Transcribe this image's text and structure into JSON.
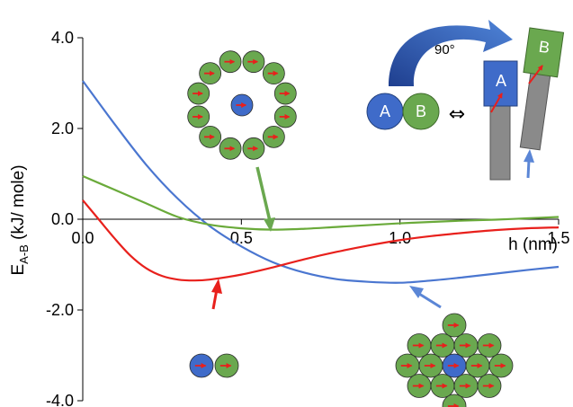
{
  "chart_data": {
    "type": "line",
    "xlabel": "h (nm)",
    "ylabel": "E",
    "ylabel_sub": "A-B",
    "ylabel_unit": " (kJ/ mole)",
    "xlim": [
      0.0,
      1.5
    ],
    "ylim": [
      -4.0,
      4.0
    ],
    "x_ticks": [
      {
        "value": 0.0,
        "label": "0.0"
      },
      {
        "value": 0.5,
        "label": "0.5"
      },
      {
        "value": 1.0,
        "label": "1.0"
      },
      {
        "value": 1.5,
        "label": "1.5"
      }
    ],
    "y_ticks": [
      {
        "value": 4.0,
        "label": "4.0"
      },
      {
        "value": 2.0,
        "label": "2.0"
      },
      {
        "value": 0.0,
        "label": "0.0"
      },
      {
        "value": -2.0,
        "label": "-2.0"
      },
      {
        "value": -4.0,
        "label": "-4.0"
      }
    ],
    "series": [
      {
        "color": "#4a76d0",
        "x": [
          0.0,
          0.1,
          0.2,
          0.3,
          0.4,
          0.5,
          0.6,
          0.7,
          0.8,
          0.9,
          1.0,
          1.1,
          1.2,
          1.3,
          1.4,
          1.5
        ],
        "y": [
          3.05,
          2.1,
          1.2,
          0.45,
          -0.15,
          -0.6,
          -0.95,
          -1.18,
          -1.32,
          -1.38,
          -1.4,
          -1.35,
          -1.28,
          -1.2,
          -1.12,
          -1.05
        ]
      },
      {
        "color": "#6aaa3a",
        "x": [
          0.0,
          0.1,
          0.2,
          0.3,
          0.4,
          0.5,
          0.6,
          0.7,
          0.8,
          0.9,
          1.0,
          1.1,
          1.2,
          1.3,
          1.4,
          1.5
        ],
        "y": [
          0.95,
          0.65,
          0.35,
          0.05,
          -0.12,
          -0.2,
          -0.23,
          -0.21,
          -0.17,
          -0.13,
          -0.09,
          -0.06,
          -0.03,
          -0.01,
          0.02,
          0.05
        ]
      },
      {
        "color": "#e8201c",
        "x": [
          0.0,
          0.05,
          0.1,
          0.15,
          0.2,
          0.25,
          0.3,
          0.35,
          0.4,
          0.5,
          0.6,
          0.7,
          0.8,
          0.9,
          1.0,
          1.1,
          1.2,
          1.3,
          1.4,
          1.5
        ],
        "y": [
          0.42,
          0.0,
          -0.42,
          -0.8,
          -1.08,
          -1.25,
          -1.33,
          -1.35,
          -1.33,
          -1.22,
          -1.06,
          -0.88,
          -0.72,
          -0.58,
          -0.46,
          -0.37,
          -0.3,
          -0.24,
          -0.2,
          -0.18
        ]
      }
    ]
  },
  "inset": {
    "bead_a_label": "A",
    "bead_b_label": "B",
    "rotation_label": "90°",
    "equivalence_symbol": "⇔",
    "colors": {
      "blue_bead": "#3f6bc9",
      "green_bead": "#6aa84f",
      "arrow": "#e8201c",
      "rod": "#888888",
      "rotation_arrow": "#3a67c4"
    }
  }
}
